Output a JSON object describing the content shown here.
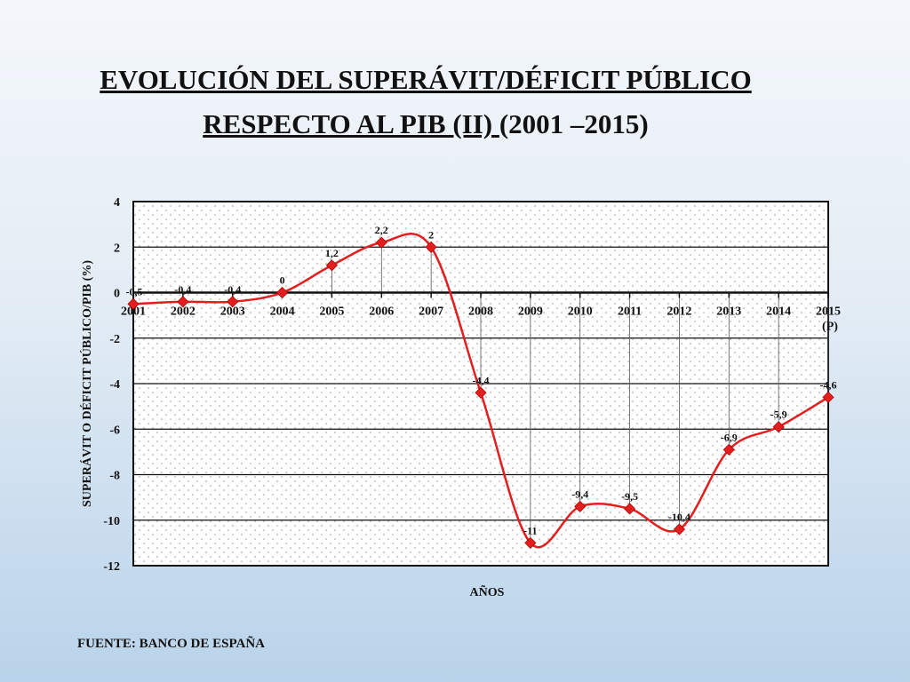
{
  "title": {
    "line1": "EVOLUCIÓN DEL SUPERÁVIT/DÉFICIT PÚBLICO",
    "line2_underlined": "RESPECTO AL PIB (II) ",
    "line2_rest": " (2001 –2015)"
  },
  "source": "FUENTE: BANCO DE ESPAÑA",
  "chart_data": {
    "type": "line",
    "xlabel": "AÑOS",
    "ylabel": "SUPERÁVIT O DÉFICIT PÚBLICO/PIB (%)",
    "ylim": [
      -12,
      4
    ],
    "ytick_step": 2,
    "grid": true,
    "categories": [
      "2001",
      "2002",
      "2003",
      "2004",
      "2005",
      "2006",
      "2007",
      "2008",
      "2009",
      "2010",
      "2011",
      "2012",
      "2013",
      "2014",
      "2015 (P)"
    ],
    "series": [
      {
        "values": [
          -0.5,
          -0.4,
          -0.4,
          0,
          1.2,
          2.2,
          2,
          -4.4,
          -11,
          -9.4,
          -9.5,
          -10.4,
          -6.9,
          -5.9,
          -4.6
        ],
        "labels": [
          "-0,5",
          "-0,4",
          "-0,4",
          "0",
          "1,2",
          "2,2",
          "2",
          "-4,4",
          "-11",
          "-9,4",
          "-9,5",
          "-10,4",
          "-6,9",
          "-5,9",
          "-4,6"
        ],
        "color": "#e31e1e"
      }
    ],
    "colors": {
      "line": "#e31e1e",
      "marker": "#e31e1e",
      "plot_bg": "#ffffff",
      "axis": "#111111"
    }
  }
}
